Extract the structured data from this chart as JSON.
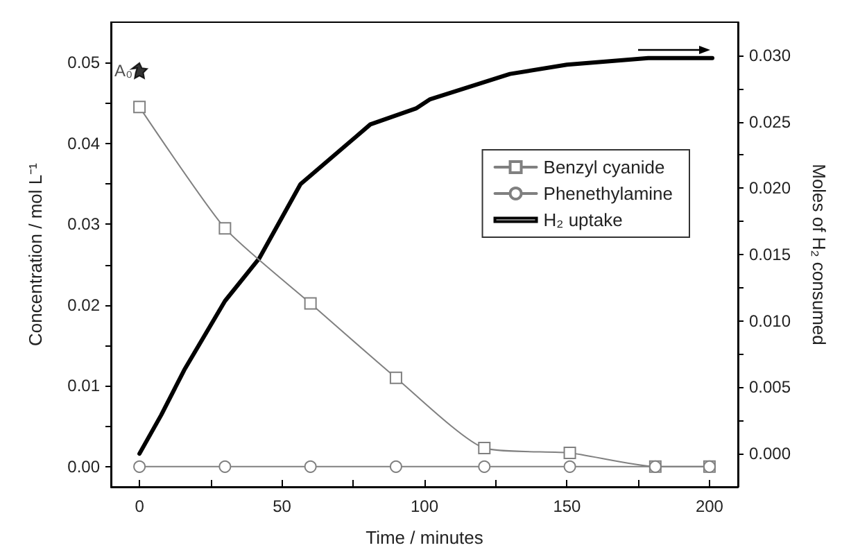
{
  "chart_data": {
    "type": "line",
    "xlabel": "Time / minutes",
    "ylabel": "Concentration / mol L⁻¹",
    "y2label": "Moles of H₂ consumed",
    "xlim": [
      -10,
      210
    ],
    "xticks": [
      0,
      50,
      100,
      150,
      200
    ],
    "ylim": [
      -0.0025,
      0.055
    ],
    "yticks": [
      {
        "value": 0,
        "label": "0.00"
      },
      {
        "value": 0.01,
        "label": "0.01"
      },
      {
        "value": 0.02,
        "label": "0.02"
      },
      {
        "value": 0.03,
        "label": "0.03"
      },
      {
        "value": 0.04,
        "label": "0.04"
      },
      {
        "value": 0.05,
        "label": "0.05"
      }
    ],
    "y2lim": [
      -0.0025,
      0.0325
    ],
    "y2ticks": [
      {
        "value": 0,
        "label": "0.000"
      },
      {
        "value": 0.005,
        "label": "0.005"
      },
      {
        "value": 0.01,
        "label": "0.010"
      },
      {
        "value": 0.015,
        "label": "0.015"
      },
      {
        "value": 0.02,
        "label": "0.020"
      },
      {
        "value": 0.025,
        "label": "0.025"
      },
      {
        "value": 0.03,
        "label": "0.030"
      }
    ],
    "grid": false,
    "legend": "right",
    "line_style": "solid",
    "annotations": [
      {
        "text": "A₀",
        "x": 0,
        "y": 0.049
      }
    ],
    "series": [
      {
        "name": "Benzyl cyanide",
        "color": "#808080",
        "marker": "square",
        "x": [
          0,
          30,
          60,
          90,
          121,
          151,
          181,
          200
        ],
        "values": [
          0.0445,
          0.0295,
          0.0202,
          0.011,
          0.0023,
          0.0017,
          0.0,
          0.0
        ]
      },
      {
        "name": "Phenethylamine",
        "color": "#808080",
        "marker": "circle",
        "x": [
          0,
          30,
          60,
          90,
          121,
          151,
          181,
          200
        ],
        "values": [
          0,
          0,
          0,
          0,
          0,
          0,
          0,
          0
        ]
      },
      {
        "name": "H₂ uptake",
        "color": "#000000",
        "marker": "none",
        "axis": "y2",
        "x": [
          0,
          7.6,
          15.7,
          30,
          42,
          56.5,
          81,
          97,
          102,
          130,
          150,
          178.5,
          201
        ],
        "values": [
          0.0,
          0.0029,
          0.0063,
          0.0115,
          0.0147,
          0.0203,
          0.0248,
          0.026,
          0.0267,
          0.0286,
          0.0293,
          0.0298,
          0.0298
        ]
      },
      {
        "type": "scatter",
        "color": "#000000",
        "marker": "star",
        "x": [
          0
        ],
        "values": [
          0.049
        ]
      }
    ]
  }
}
